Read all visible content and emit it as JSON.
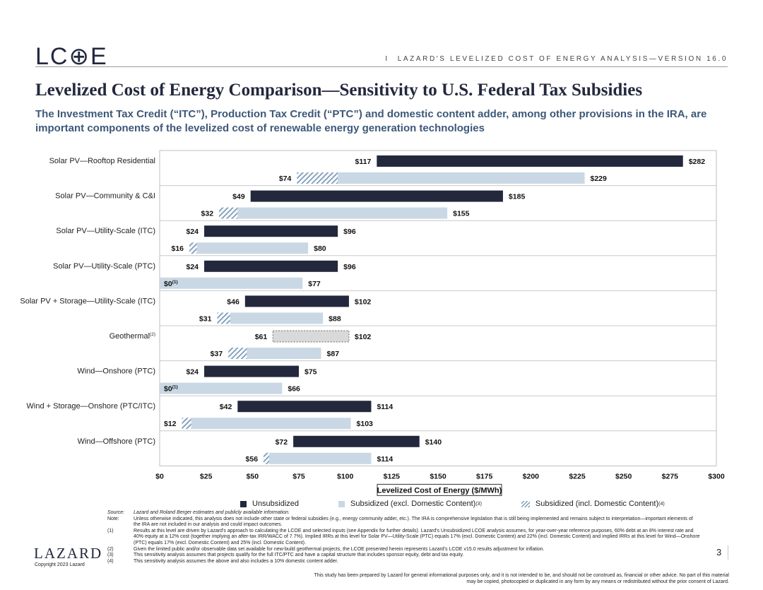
{
  "header": {
    "logo_text": "LC⊕E",
    "separator": "I",
    "right_text": "LAZARD'S LEVELIZED COST OF ENERGY ANALYSIS—VERSION 16.0"
  },
  "title": "Levelized Cost of Energy Comparison—Sensitivity to U.S. Federal Tax Subsidies",
  "subtitle": "The Investment Tax Credit (“ITC”), Production Tax Credit (“PTC”) and domestic content adder, among other provisions in the IRA, are important components of the levelized cost of renewable energy generation technologies",
  "colors": {
    "unsubsidized": "#23283d",
    "subsidized": "#c9d8e4",
    "hatch": "#7a9bb8",
    "geothermal_fill": "#d9d9d9"
  },
  "chart_data": {
    "type": "bar",
    "orientation": "horizontal",
    "xlabel": "Levelized Cost of Energy ($/MWh)",
    "xlim": [
      0,
      300
    ],
    "xticks": [
      0,
      25,
      50,
      75,
      100,
      125,
      150,
      175,
      200,
      225,
      250,
      275,
      300
    ],
    "xtick_labels": [
      "$0",
      "$25",
      "$50",
      "$75",
      "$100",
      "$125",
      "$150",
      "$175",
      "$200",
      "$225",
      "$250",
      "$275",
      "$300"
    ],
    "categories": [
      {
        "label": "Solar PV—Rooftop Residential",
        "sup": "",
        "unsub": {
          "low": 117,
          "high": 282,
          "low_label": "$117",
          "high_label": "$282",
          "style": "solid"
        },
        "sub": {
          "low": 74,
          "excl_low": 96,
          "high": 229,
          "low_label": "$74",
          "low_sup": "",
          "high_label": "$229"
        }
      },
      {
        "label": "Solar PV—Community & C&I",
        "sup": "",
        "unsub": {
          "low": 49,
          "high": 185,
          "low_label": "$49",
          "high_label": "$185",
          "style": "solid"
        },
        "sub": {
          "low": 32,
          "excl_low": 42,
          "high": 155,
          "low_label": "$32",
          "low_sup": "",
          "high_label": "$155"
        }
      },
      {
        "label": "Solar PV—Utility-Scale (ITC)",
        "sup": "",
        "unsub": {
          "low": 24,
          "high": 96,
          "low_label": "$24",
          "high_label": "$96",
          "style": "solid"
        },
        "sub": {
          "low": 16,
          "excl_low": 20,
          "high": 80,
          "low_label": "$16",
          "low_sup": "",
          "high_label": "$80"
        }
      },
      {
        "label": "Solar PV—Utility-Scale (PTC)",
        "sup": "",
        "unsub": {
          "low": 24,
          "high": 96,
          "low_label": "$24",
          "high_label": "$96",
          "style": "solid"
        },
        "sub": {
          "low": 0,
          "excl_low": 0,
          "high": 77,
          "low_label": "$0",
          "low_sup": "(1)",
          "high_label": "$77"
        }
      },
      {
        "label": "Solar PV + Storage—Utility-Scale (ITC)",
        "sup": "",
        "unsub": {
          "low": 46,
          "high": 102,
          "low_label": "$46",
          "high_label": "$102",
          "style": "solid"
        },
        "sub": {
          "low": 31,
          "excl_low": 38,
          "high": 88,
          "low_label": "$31",
          "low_sup": "",
          "high_label": "$88"
        }
      },
      {
        "label": "Geothermal",
        "sup": "(2)",
        "unsub": {
          "low": 61,
          "high": 102,
          "low_label": "$61",
          "high_label": "$102",
          "style": "dashed"
        },
        "sub": {
          "low": 37,
          "excl_low": 47,
          "high": 87,
          "low_label": "$37",
          "low_sup": "",
          "high_label": "$87"
        }
      },
      {
        "label": "Wind—Onshore (PTC)",
        "sup": "",
        "unsub": {
          "low": 24,
          "high": 75,
          "low_label": "$24",
          "high_label": "$75",
          "style": "solid"
        },
        "sub": {
          "low": 0,
          "excl_low": 0,
          "high": 66,
          "low_label": "$0",
          "low_sup": "(1)",
          "high_label": "$66"
        }
      },
      {
        "label": "Wind + Storage—Onshore (PTC/ITC)",
        "sup": "",
        "unsub": {
          "low": 42,
          "high": 114,
          "low_label": "$42",
          "high_label": "$114",
          "style": "solid"
        },
        "sub": {
          "low": 12,
          "excl_low": 17,
          "high": 103,
          "low_label": "$12",
          "low_sup": "",
          "high_label": "$103"
        }
      },
      {
        "label": "Wind—Offshore (PTC)",
        "sup": "",
        "unsub": {
          "low": 72,
          "high": 140,
          "low_label": "$72",
          "high_label": "$140",
          "style": "solid"
        },
        "sub": {
          "low": 56,
          "excl_low": 59,
          "high": 114,
          "low_label": "$56",
          "low_sup": "",
          "high_label": "$114"
        }
      }
    ],
    "legend": [
      {
        "name": "Unsubsidized",
        "sup": ""
      },
      {
        "name": "Subsidized (excl. Domestic Content)",
        "sup": "(3)"
      },
      {
        "name": "Subsidized (incl. Domestic Content)",
        "sup": "(4)"
      }
    ],
    "legend_position": "bottom"
  },
  "notes": [
    {
      "key": "Source:",
      "text": "Lazard and Roland Berger estimates and publicly available information.",
      "italic": true
    },
    {
      "key": "Note:",
      "text": "Unless otherwise indicated, this analysis does not include other state or federal subsidies (e.g., energy community adder, etc.). The IRA is comprehensive legislation that is still being implemented and remains subject to interpretation—important elements of the IRA are not included in our analysis and could impact outcomes.",
      "italic": false
    },
    {
      "key": "(1)",
      "text": "Results at this level are driven by Lazard's approach to calculating the LCOE and selected inputs (see Appendix for further details). Lazard's Unsubsidized LCOE analysis assumes, for year-over-year reference purposes, 60% debt at an 8% interest rate and 40% equity at a 12% cost (together implying an after-tax IRR/WACC of 7.7%). Implied IRRs at this level for Solar PV—Utility-Scale (PTC) equals 17% (excl. Domestic Content) and 22% (incl. Domestic Content) and implied IRRs at this level for Wind—Onshore (PTC) equals 17% (excl. Domestic Content) and 25% (incl. Domestic Content).",
      "italic": false
    },
    {
      "key": "(2)",
      "text": "Given the limited public and/or observable data set available for new-build geothermal projects, the LCOE presented herein represents Lazard's LCOE v15.0 results adjustment for inflation.",
      "italic": false
    },
    {
      "key": "(3)",
      "text": "This sensitivity analysis assumes that projects qualify for the full ITC/PTC and have a capital structure that includes sponsor equity, debt and tax equity.",
      "italic": false
    },
    {
      "key": "(4)",
      "text": "This sensitivity analysis assumes the above and also includes a 10% domestic content adder.",
      "italic": false
    }
  ],
  "footer": {
    "brand": "LAZARD",
    "copyright": "Copyright 2023 Lazard",
    "page_number": "3",
    "disclaimer": "This study has been prepared by Lazard for general informational purposes only, and it is not intended to be, and should not be construed as, financial or other advice. No part of this material may be copied, photocopied or duplicated in any form by any means or redistributed without the prior consent of Lazard."
  }
}
